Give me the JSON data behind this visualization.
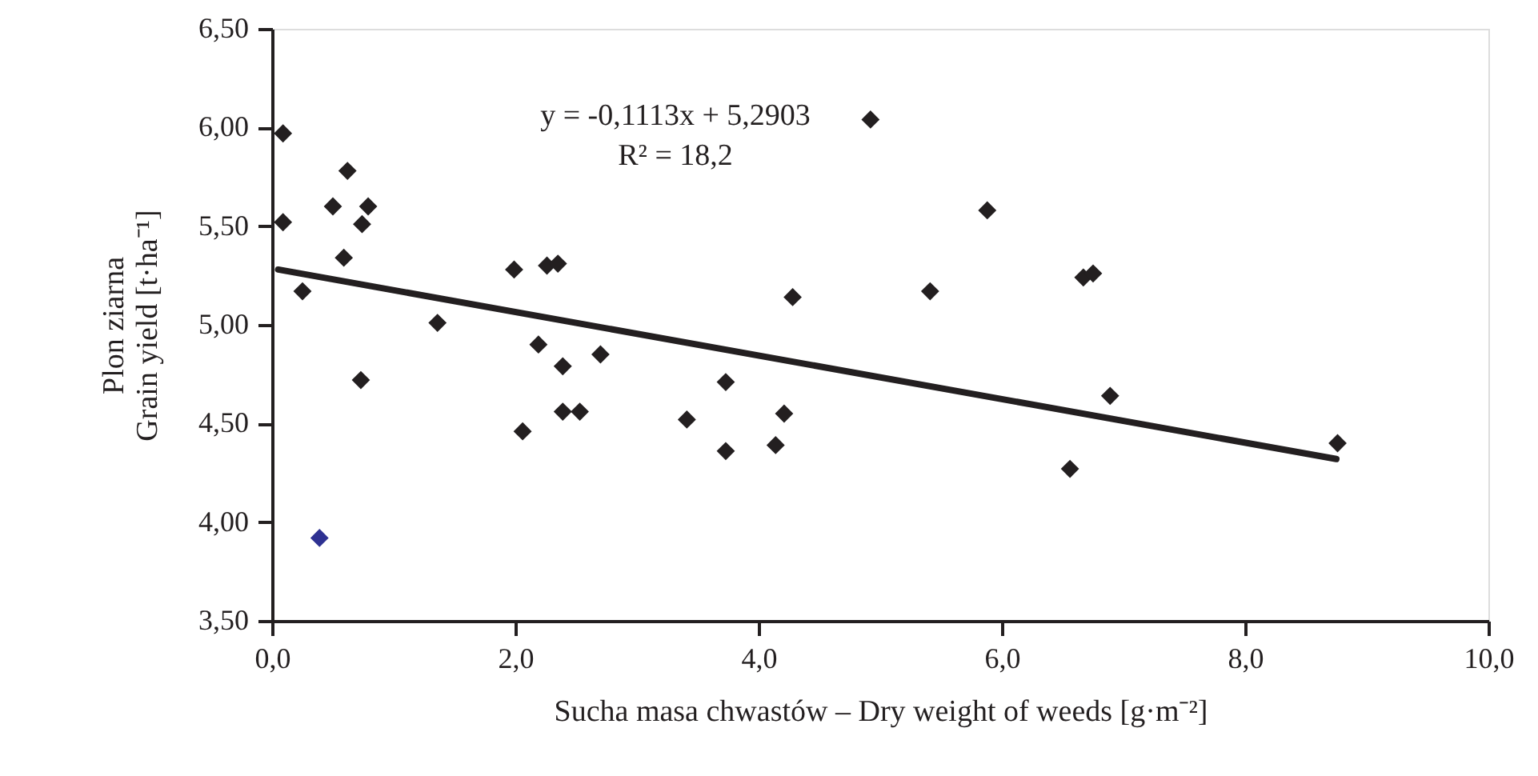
{
  "chart_data": {
    "type": "scatter",
    "xlabel": "Sucha masa chwastów – Dry weight of weeds [g·m⁻²]",
    "ylabel": "Plon ziarna\nGrain yield [t·ha⁻¹]",
    "annotations": [
      "y = -0,1113x + 5,2903",
      "R² = 18,2"
    ],
    "series": [
      {
        "color": "#231f20",
        "x": [
          0.09,
          0.09,
          0.25,
          0.5,
          0.59,
          0.62,
          0.73,
          0.74,
          0.79,
          1.36,
          1.99,
          2.06,
          2.19,
          2.26,
          2.35,
          2.39,
          2.39,
          2.53,
          2.7,
          3.41,
          3.73,
          3.73,
          4.14,
          4.21,
          4.28,
          4.92,
          5.41,
          5.88,
          6.56,
          6.67,
          6.75,
          6.89,
          8.76
        ],
        "values": [
          5.97,
          5.52,
          5.17,
          5.6,
          5.34,
          5.78,
          4.72,
          5.51,
          5.6,
          5.01,
          5.28,
          4.46,
          4.9,
          5.3,
          5.31,
          4.79,
          4.56,
          4.56,
          4.85,
          4.52,
          4.71,
          4.36,
          4.39,
          4.55,
          5.14,
          6.04,
          5.17,
          5.58,
          4.27,
          5.24,
          5.26,
          4.64,
          4.4
        ]
      },
      {
        "color": "#2e3192",
        "x": [
          0.39
        ],
        "values": [
          3.92
        ]
      },
      {
        "type": "line",
        "marker": "none",
        "color": "#231f20",
        "x": [
          0.05,
          8.75
        ],
        "values": [
          5.28,
          4.32
        ]
      }
    ],
    "xlim": [
      0,
      10
    ],
    "xticks": [
      {
        "value": 0,
        "label": "0,0"
      },
      {
        "value": 2,
        "label": "2,0"
      },
      {
        "value": 4,
        "label": "4,0"
      },
      {
        "value": 6,
        "label": "6,0"
      },
      {
        "value": 8,
        "label": "8,0"
      },
      {
        "value": 10,
        "label": "10,0"
      }
    ],
    "ylim": [
      3.5,
      6.5
    ],
    "yticks": [
      {
        "value": 3.5,
        "label": "3,50"
      },
      {
        "value": 4,
        "label": "4,00"
      },
      {
        "value": 4.5,
        "label": "4,50"
      },
      {
        "value": 5,
        "label": "5,00"
      },
      {
        "value": 5.5,
        "label": "5,50"
      },
      {
        "value": 6,
        "label": "6,00"
      },
      {
        "value": 6.5,
        "label": "6,50"
      }
    ],
    "grid": false,
    "marker": "diamond"
  }
}
